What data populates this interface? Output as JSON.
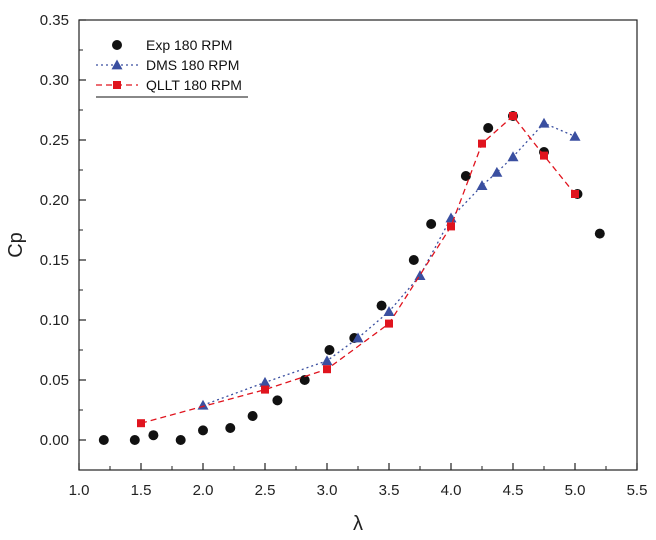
{
  "chart_data": {
    "type": "scatter",
    "title": "",
    "xlabel": "λ",
    "ylabel": "Cp",
    "xlim": [
      1.0,
      5.5
    ],
    "ylim": [
      -0.025,
      0.35
    ],
    "xticks": [
      "1.0",
      "1.5",
      "2.0",
      "2.5",
      "3.0",
      "3.5",
      "4.0",
      "4.5",
      "5.0",
      "5.5"
    ],
    "yticks": [
      "0.00",
      "0.05",
      "0.10",
      "0.15",
      "0.20",
      "0.25",
      "0.30",
      "0.35"
    ],
    "grid": false,
    "legend_position": "top-left",
    "series": [
      {
        "name": "Exp 180 RPM",
        "marker": "circle",
        "line": "none",
        "color": "#111111",
        "points": [
          [
            1.2,
            0.0
          ],
          [
            1.45,
            0.0
          ],
          [
            1.6,
            0.004
          ],
          [
            1.82,
            0.0
          ],
          [
            2.0,
            0.008
          ],
          [
            2.22,
            0.01
          ],
          [
            2.4,
            0.02
          ],
          [
            2.6,
            0.033
          ],
          [
            2.82,
            0.05
          ],
          [
            3.02,
            0.075
          ],
          [
            3.22,
            0.085
          ],
          [
            3.44,
            0.112
          ],
          [
            3.7,
            0.15
          ],
          [
            3.84,
            0.18
          ],
          [
            4.12,
            0.22
          ],
          [
            4.3,
            0.26
          ],
          [
            4.5,
            0.27
          ],
          [
            4.75,
            0.24
          ],
          [
            5.02,
            0.205
          ],
          [
            5.2,
            0.172
          ]
        ]
      },
      {
        "name": "DMS 180 RPM",
        "marker": "triangle",
        "line": "dotted",
        "color": "#3a4fa0",
        "points": [
          [
            2.0,
            0.029
          ],
          [
            2.5,
            0.048
          ],
          [
            3.0,
            0.066
          ],
          [
            3.25,
            0.085
          ],
          [
            3.5,
            0.107
          ],
          [
            3.75,
            0.137
          ],
          [
            4.0,
            0.185
          ],
          [
            4.25,
            0.212
          ],
          [
            4.37,
            0.223
          ],
          [
            4.5,
            0.236
          ],
          [
            4.75,
            0.264
          ],
          [
            5.0,
            0.253
          ]
        ]
      },
      {
        "name": "QLLT 180 RPM",
        "marker": "square",
        "line": "dashed",
        "color": "#e0141e",
        "points": [
          [
            1.5,
            0.014
          ],
          [
            2.5,
            0.042
          ],
          [
            3.0,
            0.059
          ],
          [
            3.5,
            0.097
          ],
          [
            4.0,
            0.178
          ],
          [
            4.25,
            0.247
          ],
          [
            4.5,
            0.27
          ],
          [
            4.75,
            0.237
          ],
          [
            5.0,
            0.205
          ]
        ]
      }
    ]
  }
}
